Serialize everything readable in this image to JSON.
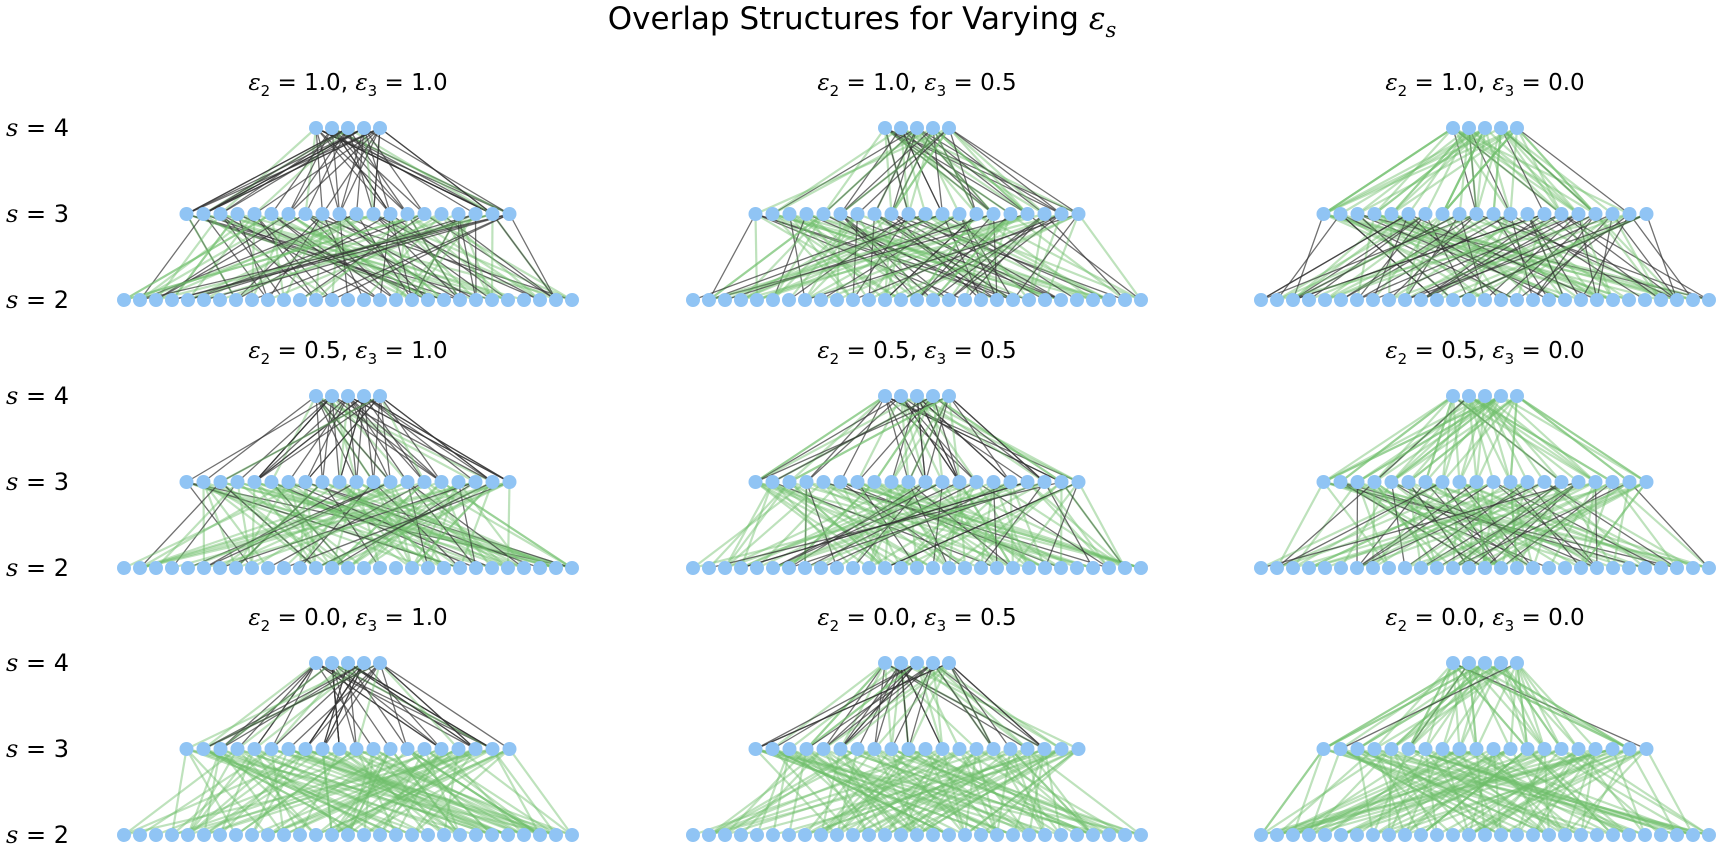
{
  "title": {
    "prefix": "Overlap Structures for Varying ",
    "symbol": "ε",
    "subscript": "s"
  },
  "level_labels": [
    {
      "var": "s",
      "op": " = ",
      "value": "4"
    },
    {
      "var": "s",
      "op": " = ",
      "value": "3"
    },
    {
      "var": "s",
      "op": " = ",
      "value": "2"
    }
  ],
  "panels": [
    {
      "e2": "1.0",
      "e3": "1.0"
    },
    {
      "e2": "1.0",
      "e3": "0.5"
    },
    {
      "e2": "1.0",
      "e3": "0.0"
    },
    {
      "e2": "0.5",
      "e3": "1.0"
    },
    {
      "e2": "0.5",
      "e3": "0.5"
    },
    {
      "e2": "0.5",
      "e3": "0.0"
    },
    {
      "e2": "0.0",
      "e3": "1.0"
    },
    {
      "e2": "0.0",
      "e3": "0.5"
    },
    {
      "e2": "0.0",
      "e3": "0.0"
    }
  ],
  "node_counts": {
    "s4": 5,
    "s3": 20,
    "s2": 29
  },
  "colors": {
    "node": "#90c4f4",
    "green_edge": "#6fbf6a",
    "dark_edge": "#333333",
    "text": "#000000"
  }
}
